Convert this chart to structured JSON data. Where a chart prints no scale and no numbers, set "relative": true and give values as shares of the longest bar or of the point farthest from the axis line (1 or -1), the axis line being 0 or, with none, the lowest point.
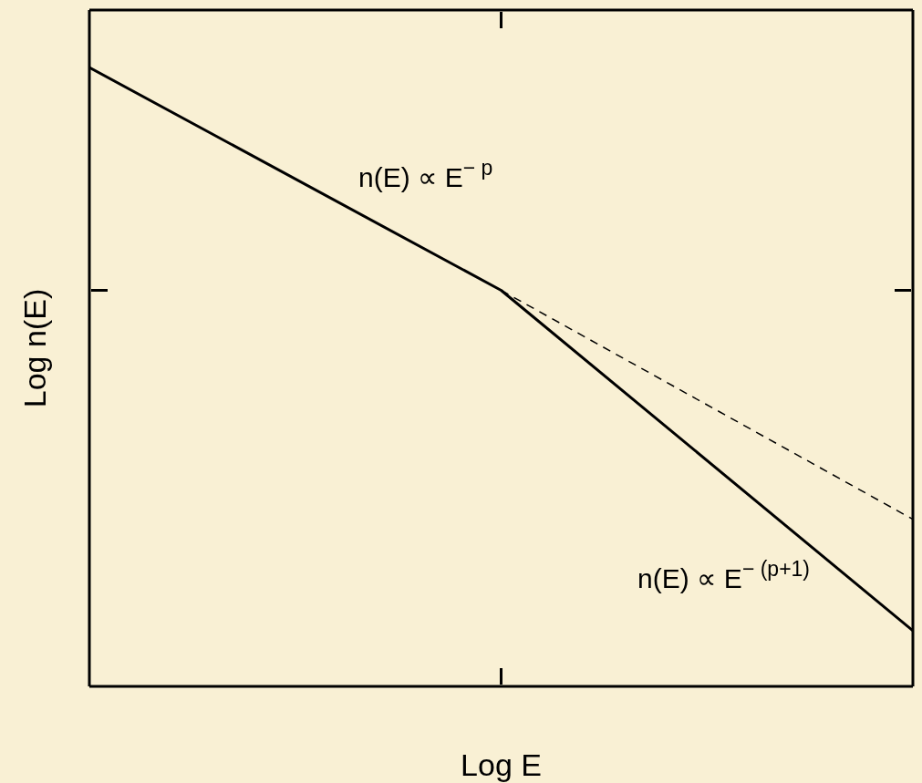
{
  "chart_data": {
    "type": "line",
    "xlabel": "Log E",
    "ylabel": "Log n(E)",
    "categories": [
      null,
      null,
      null
    ],
    "relative": true,
    "series": [
      {
        "color": "#000000",
        "values": [
          1,
          0.64,
          0.09
        ]
      },
      {
        "color": "#000000",
        "values": [
          null,
          0.64,
          0.27
        ],
        "line_style": "dashed"
      }
    ],
    "annotations": [
      "n(E) ∝ E$^{− p}$",
      "n(E) ∝ E$^{− (p+1)}$"
    ]
  }
}
